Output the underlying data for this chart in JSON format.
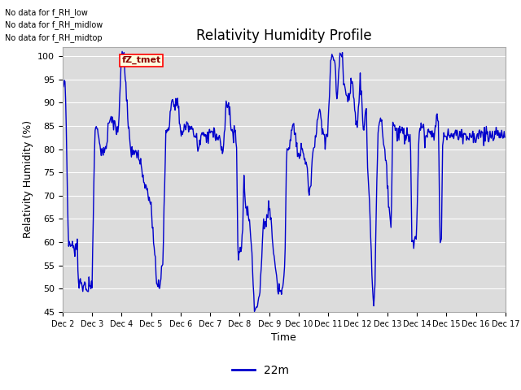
{
  "title": "Relativity Humidity Profile",
  "xlabel": "Time",
  "ylabel": "Relativity Humidity (%)",
  "ylim": [
    45,
    102
  ],
  "yticks": [
    45,
    50,
    55,
    60,
    65,
    70,
    75,
    80,
    85,
    90,
    95,
    100
  ],
  "line_color": "#0000cc",
  "line_width": 1.0,
  "legend_label": "22m",
  "no_data_texts": [
    "No data for f_RH_low",
    "No data for f_RH_midlow",
    "No data for f_RH_midtop"
  ],
  "tooltip_text": "fZ_tmet",
  "plot_bg_color": "#dcdcdc",
  "num_points": 720
}
